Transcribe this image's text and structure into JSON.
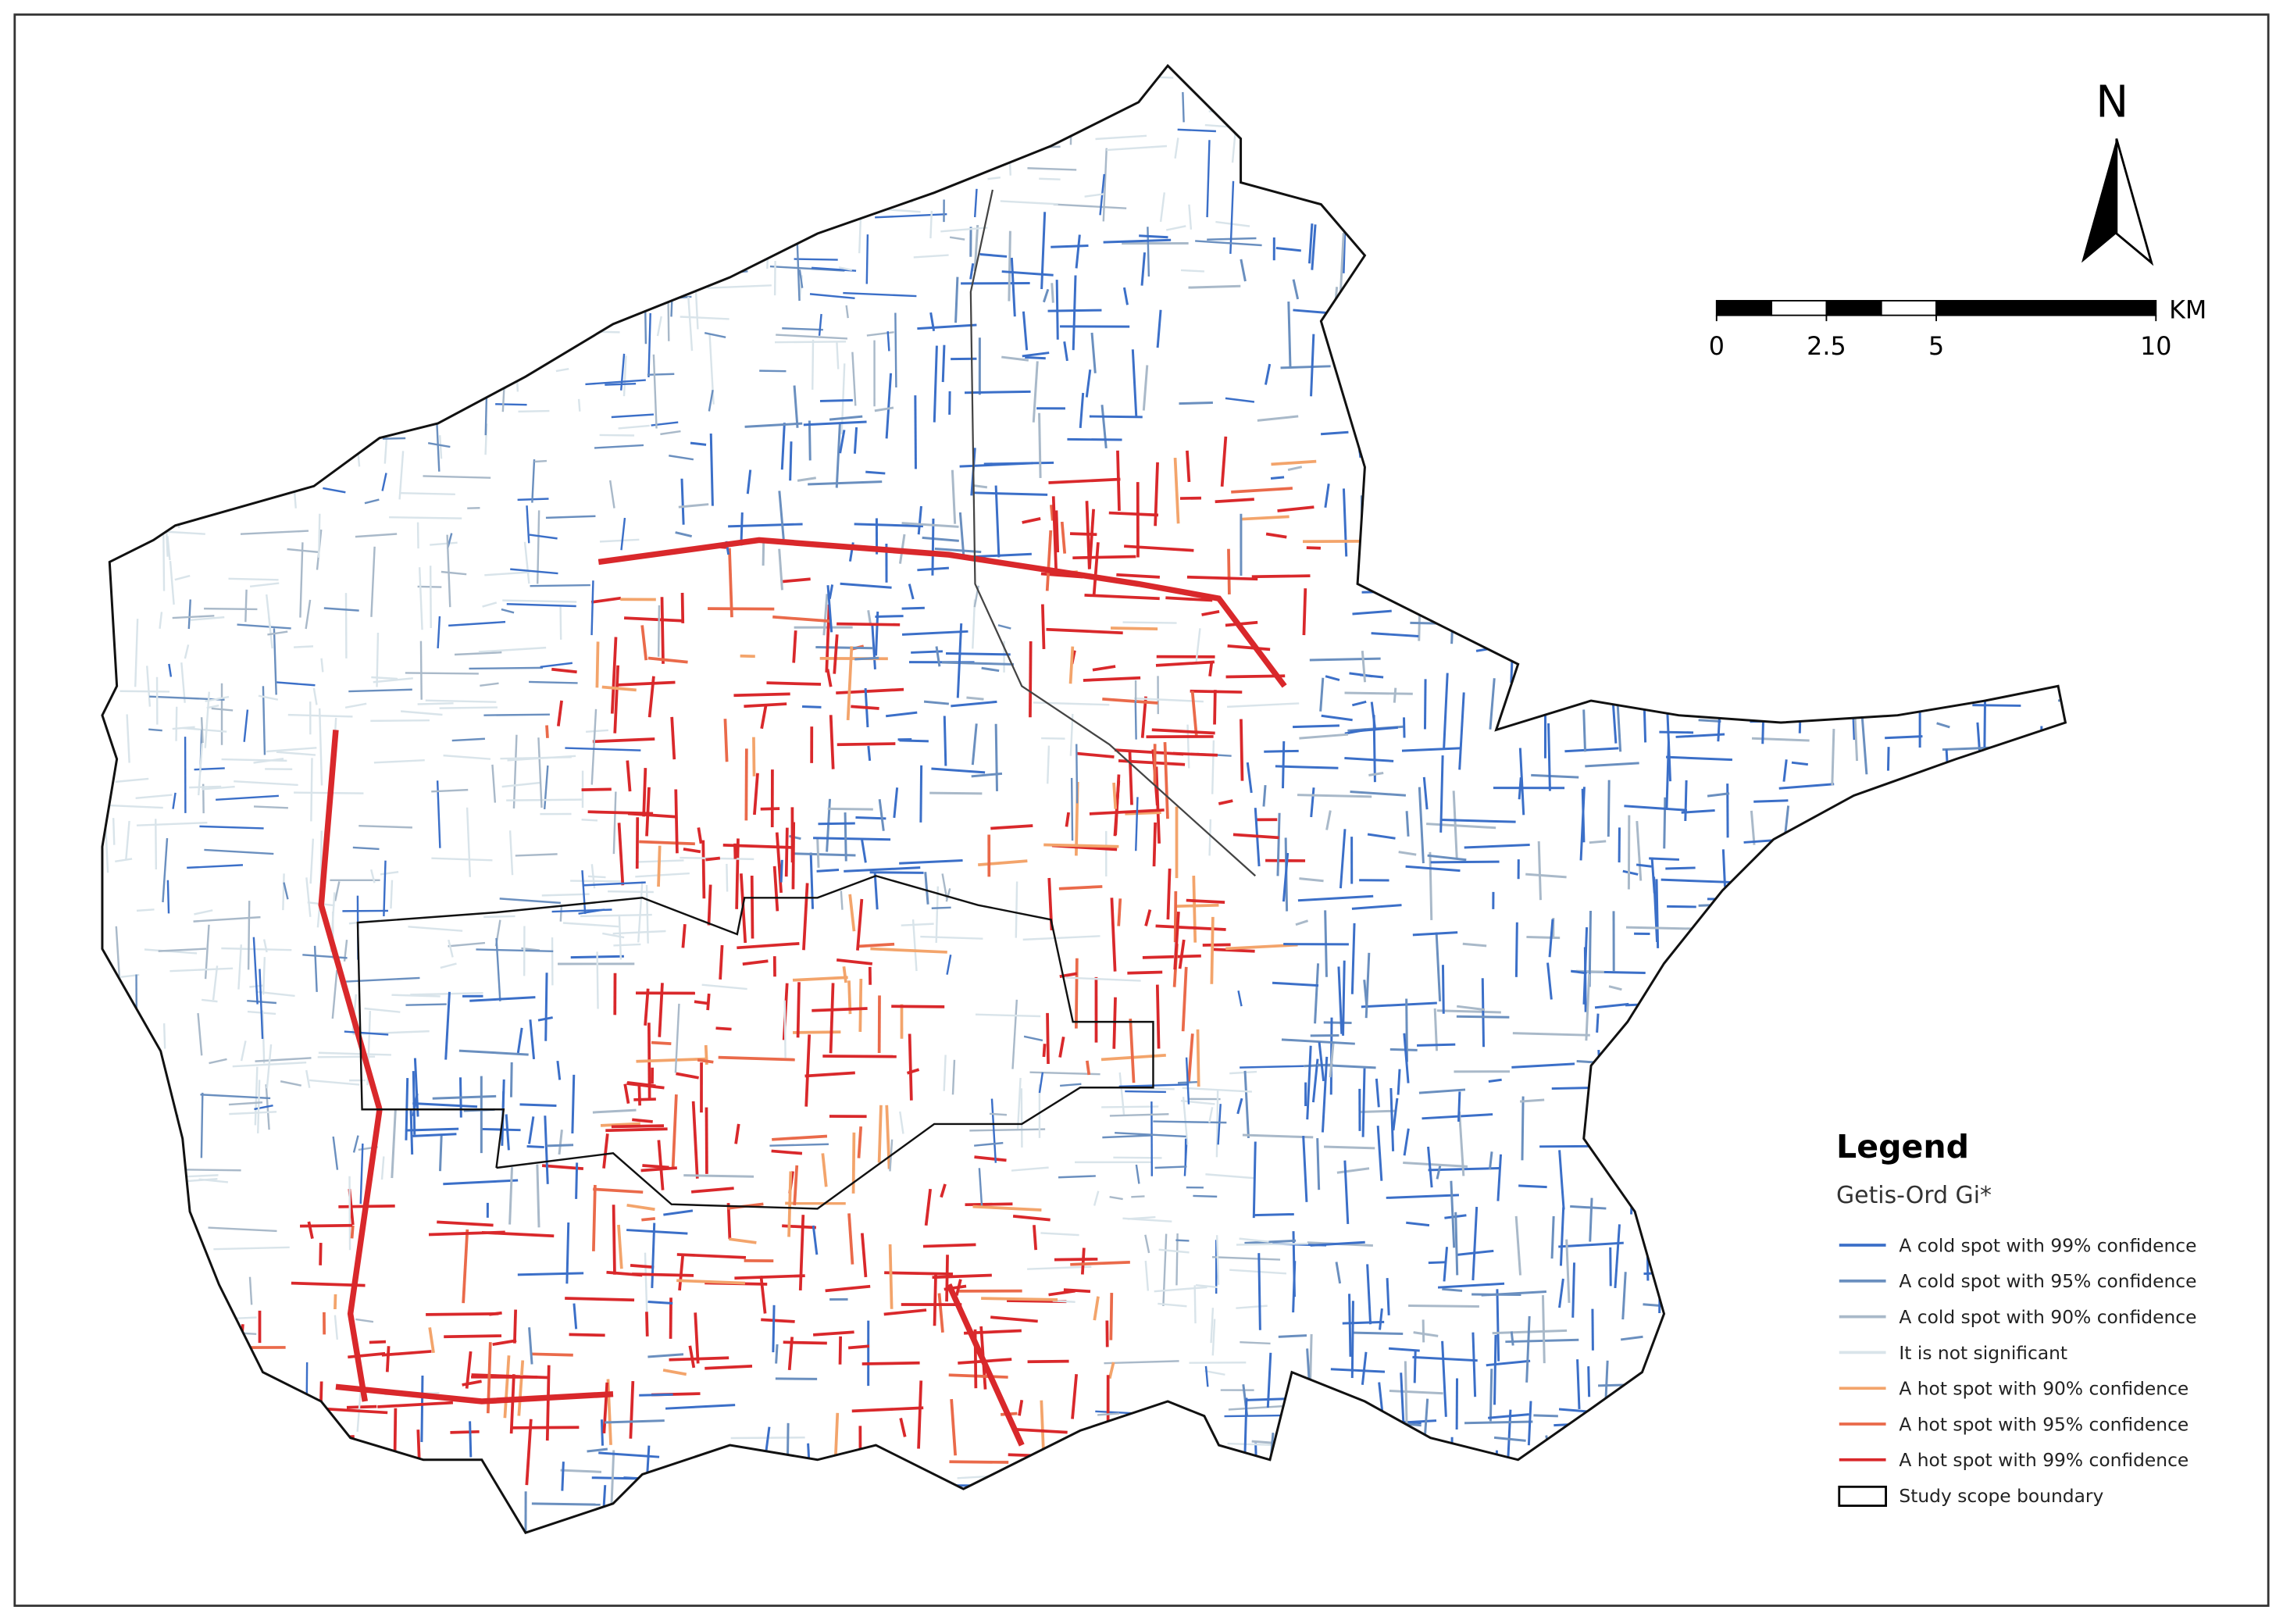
{
  "north_arrow": {
    "label": "N"
  },
  "scale_bar": {
    "unit": "KM",
    "ticks": [
      0,
      2.5,
      5,
      10
    ]
  },
  "legend": {
    "title": "Legend",
    "subtitle": "Getis-Ord Gi*",
    "items": [
      {
        "label": "A cold spot with 99% confidence",
        "color": "#3b6fc8"
      },
      {
        "label": "A cold spot with 95% confidence",
        "color": "#6a8fbf"
      },
      {
        "label": "A cold spot with 90% confidence",
        "color": "#a9b9c9"
      },
      {
        "label": "It is not significant",
        "color": "#d9e4ea"
      },
      {
        "label": "A hot spot with 90% confidence",
        "color": "#f3a46b"
      },
      {
        "label": "A hot spot with 95% confidence",
        "color": "#ea6a4a"
      },
      {
        "label": "A hot spot with 99% confidence",
        "color": "#d9282b"
      },
      {
        "label": "Study scope boundary",
        "color": "#000000"
      }
    ]
  }
}
